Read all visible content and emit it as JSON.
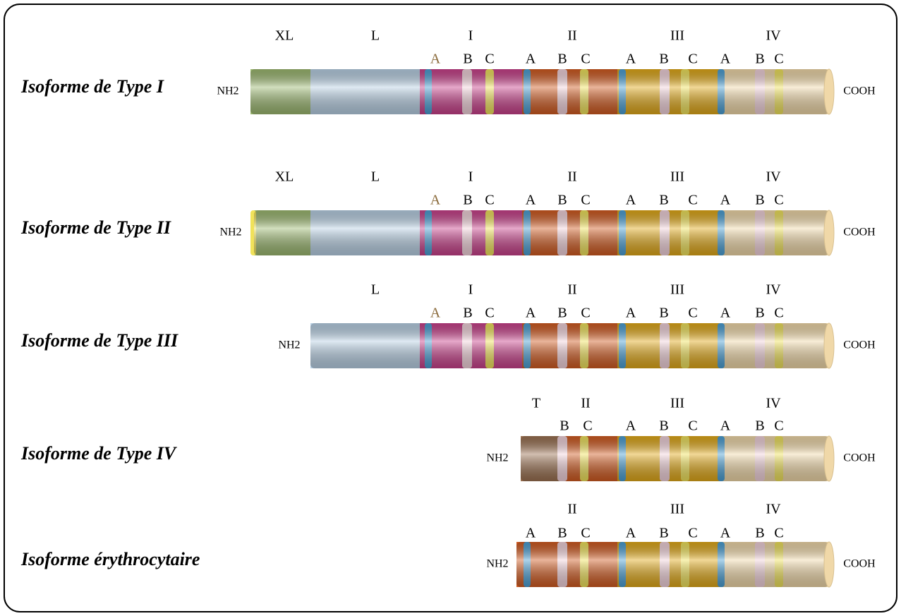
{
  "rows": [
    {
      "label": "Isoforme de Type I",
      "nh2": "NH2",
      "cooh": "COOH",
      "domains": [
        "XL",
        "L",
        "I",
        "II",
        "III",
        "IV"
      ],
      "subdomains": [
        "A",
        "B",
        "C",
        "A",
        "B",
        "C",
        "A",
        "B",
        "C",
        "A",
        "B",
        "C"
      ]
    },
    {
      "label": "Isoforme de Type II",
      "nh2": "NH2",
      "cooh": "COOH",
      "domains": [
        "XL",
        "L",
        "I",
        "II",
        "III",
        "IV"
      ],
      "subdomains": [
        "A",
        "B",
        "C",
        "A",
        "B",
        "C",
        "A",
        "B",
        "C",
        "A",
        "B",
        "C"
      ]
    },
    {
      "label": "Isoforme de Type III",
      "nh2": "NH2",
      "cooh": "COOH",
      "domains": [
        "L",
        "I",
        "II",
        "III",
        "IV"
      ],
      "subdomains": [
        "A",
        "B",
        "C",
        "A",
        "B",
        "C",
        "A",
        "B",
        "C",
        "A",
        "B",
        "C"
      ]
    },
    {
      "label": "Isoforme de Type IV",
      "nh2": "NH2",
      "cooh": "COOH",
      "domains": [
        "T",
        "II",
        "III",
        "IV"
      ],
      "subdomains": [
        "B",
        "C",
        "A",
        "B",
        "C",
        "A",
        "B",
        "C"
      ]
    },
    {
      "label": "Isoforme érythrocytaire",
      "nh2": "NH2",
      "cooh": "COOH",
      "domains": [
        "II",
        "III",
        "IV"
      ],
      "subdomains": [
        "A",
        "B",
        "C",
        "A",
        "B",
        "C",
        "A",
        "B",
        "C"
      ]
    }
  ]
}
